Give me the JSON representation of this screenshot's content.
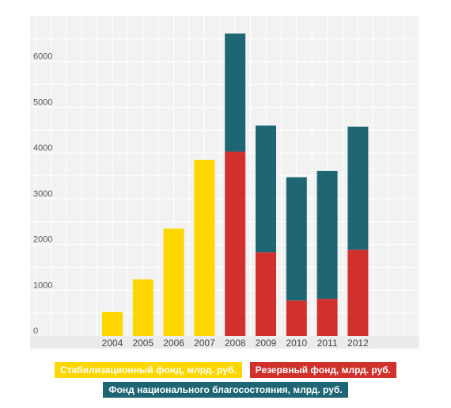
{
  "chart_data": {
    "type": "bar",
    "stacked": true,
    "categories": [
      "2004",
      "2005",
      "2006",
      "2007",
      "2008",
      "2009",
      "2010",
      "2011",
      "2012"
    ],
    "series": [
      {
        "name": "Стабилизационный фонд, млрд. руб.",
        "color": "#FFD700",
        "values": [
          522,
          1237,
          2347,
          3849,
          0,
          0,
          0,
          0,
          0
        ]
      },
      {
        "name": "Резервный фонд, млрд. руб.",
        "color": "#D0312D",
        "values": [
          0,
          0,
          0,
          0,
          4028,
          1830,
          775,
          812,
          1886
        ]
      },
      {
        "name": "Фонд национального благосостояния, млрд. руб.",
        "color": "#1F6675",
        "values": [
          0,
          0,
          0,
          0,
          2584,
          2770,
          2695,
          2794,
          2691
        ]
      }
    ],
    "yticks": [
      0,
      1000,
      2000,
      3000,
      4000,
      5000,
      6000
    ],
    "ylim": [
      0,
      7000
    ],
    "grid": true,
    "legend_position": "bottom",
    "title": "",
    "xlabel": "",
    "ylabel": ""
  }
}
